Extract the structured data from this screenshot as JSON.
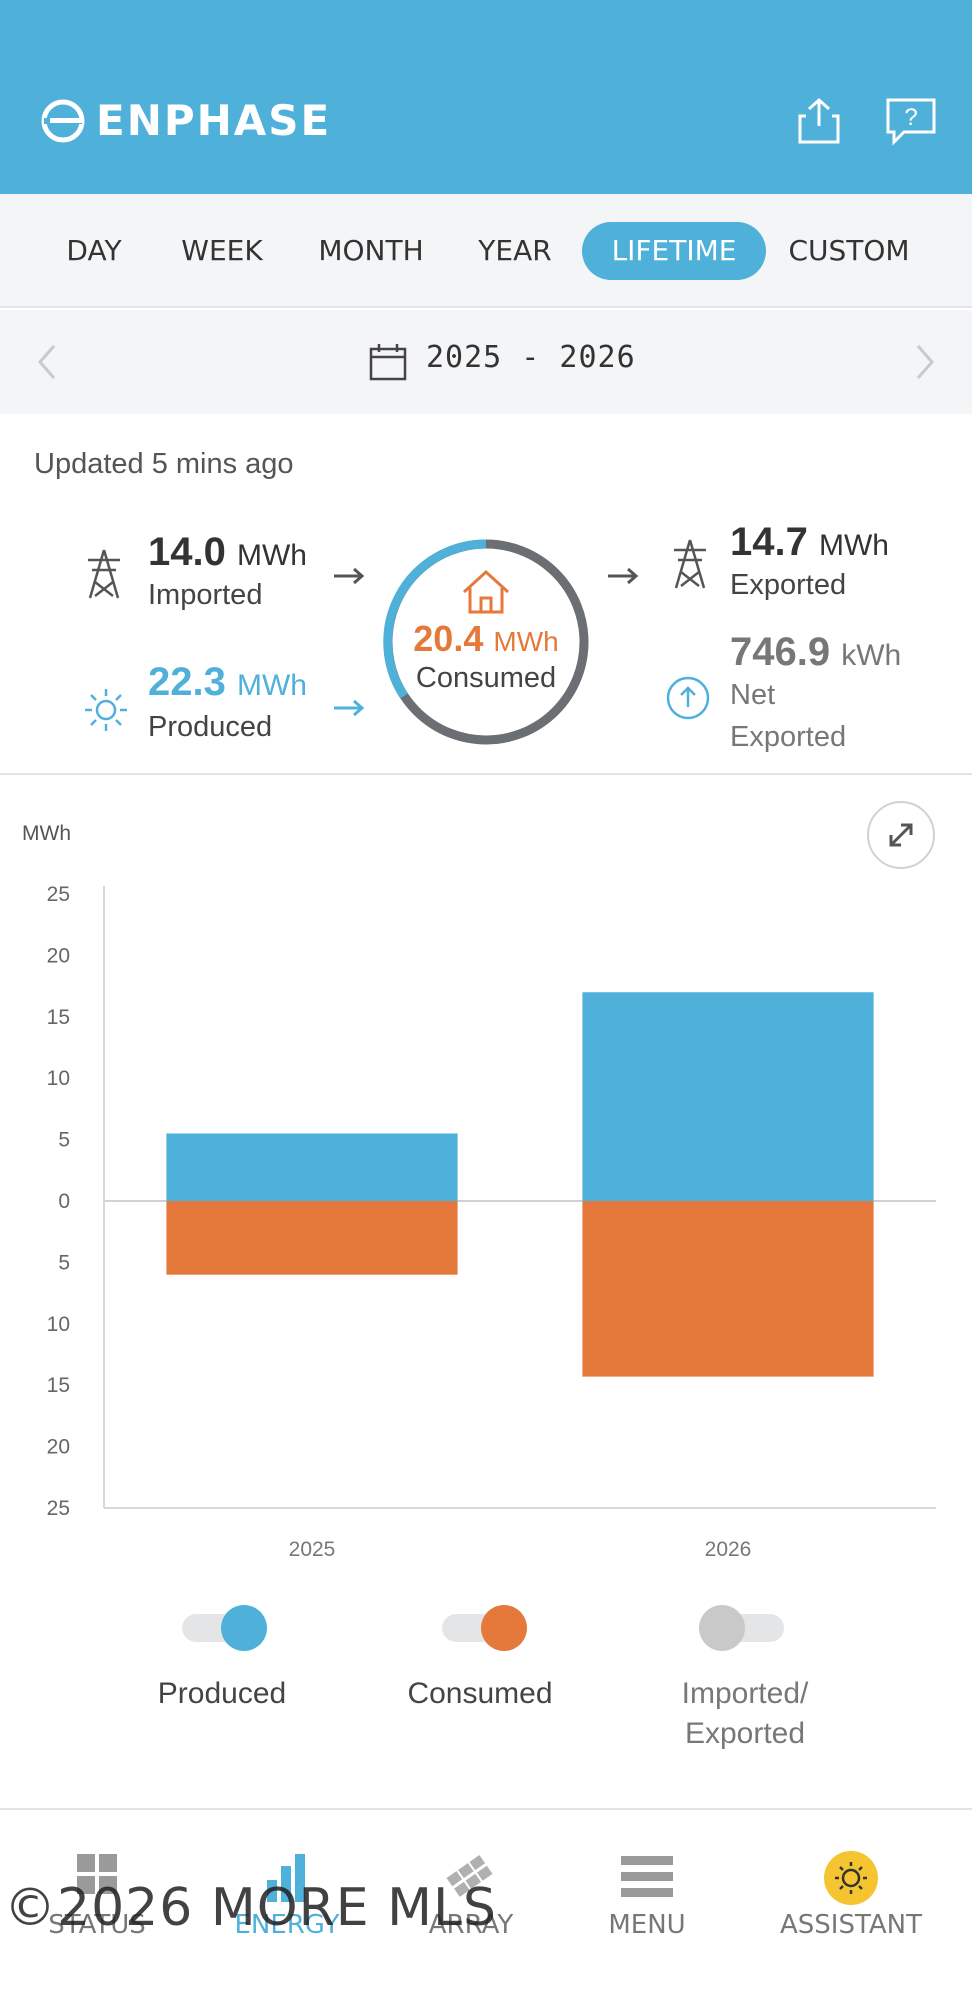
{
  "header": {
    "brand": "ENPHASE",
    "bg_color": "#4fb0da",
    "icons": [
      "enphase-logo",
      "share-icon",
      "help-icon"
    ],
    "help_glyph": "?"
  },
  "tabs": [
    {
      "label": "DAY",
      "active": false
    },
    {
      "label": "WEEK",
      "active": false
    },
    {
      "label": "MONTH",
      "active": false
    },
    {
      "label": "YEAR",
      "active": false
    },
    {
      "label": "LIFETIME",
      "active": true
    },
    {
      "label": "CUSTOM",
      "active": false
    }
  ],
  "date_nav": {
    "range": "2025 - 2026"
  },
  "summary": {
    "updated": "Updated 5 mins ago",
    "imported": {
      "value": "14.0",
      "unit": "MWh",
      "label": "Imported"
    },
    "produced": {
      "value": "22.3",
      "unit": "MWh",
      "label": "Produced"
    },
    "consumed": {
      "value": "20.4",
      "unit": "MWh",
      "label": "Consumed"
    },
    "exported": {
      "value": "14.7",
      "unit": "MWh",
      "label": "Exported"
    },
    "net_exported": {
      "value": "746.9",
      "unit": "kWh",
      "label_line1": "Net",
      "label_line2": "Exported"
    }
  },
  "colors": {
    "produced": "#4fb0da",
    "consumed": "#e5793b",
    "imported_exported": "#c9c9c9",
    "ring_track": "#6b6e73"
  },
  "chart_data": {
    "type": "bar",
    "ylabel": "MWh",
    "categories": [
      "2025",
      "2026"
    ],
    "series": [
      {
        "name": "Produced",
        "values": [
          5.5,
          17
        ]
      },
      {
        "name": "Consumed",
        "values": [
          -6,
          -14.3
        ]
      }
    ],
    "ylim": [
      -25,
      25
    ],
    "y_ticks": [
      25,
      20,
      15,
      10,
      5,
      0,
      5,
      10,
      15,
      20,
      25
    ],
    "grid": false,
    "stacked": "diverging"
  },
  "legend": [
    {
      "label": "Produced",
      "on": true
    },
    {
      "label": "Consumed",
      "on": true
    },
    {
      "label_line1": "Imported/",
      "label_line2": "Exported",
      "on": false
    }
  ],
  "bottom_nav": [
    {
      "label": "STATUS",
      "icon": "status-grid-icon",
      "active": false
    },
    {
      "label": "ENERGY",
      "icon": "energy-bars-icon",
      "active": true
    },
    {
      "label": "ARRAY",
      "icon": "array-panels-icon",
      "active": false
    },
    {
      "label": "MENU",
      "icon": "menu-icon",
      "active": false
    },
    {
      "label": "ASSISTANT",
      "icon": "assistant-sun-icon",
      "active": false
    }
  ],
  "watermark": "©2026 MORE MLS"
}
